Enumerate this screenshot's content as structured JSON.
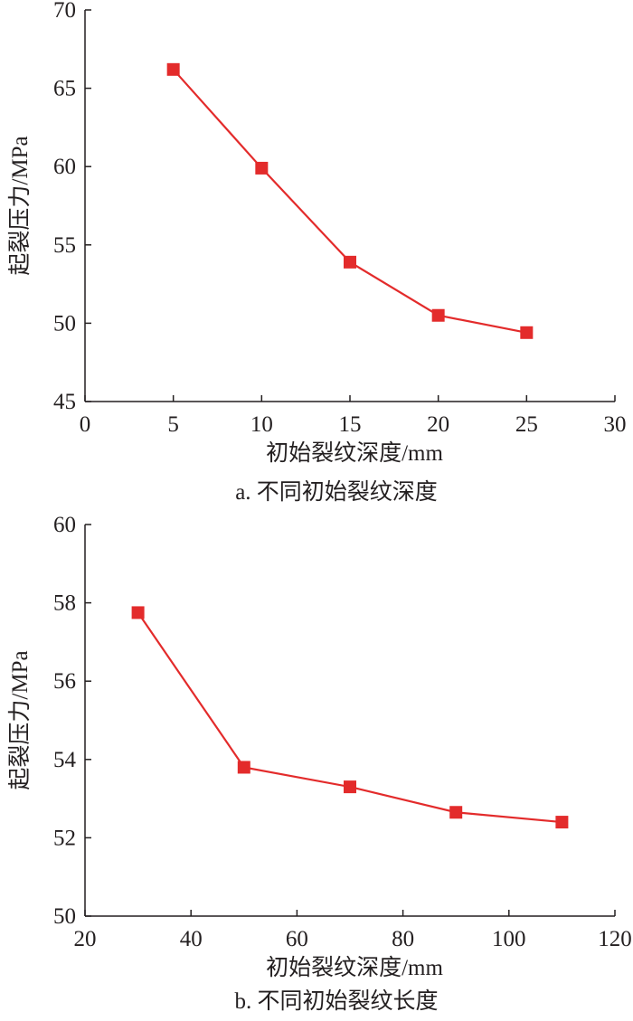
{
  "colors": {
    "series": "#e32b2b",
    "axis": "#231f20"
  },
  "chart_data": [
    {
      "type": "line",
      "caption": "a. 不同初始裂纹深度",
      "xlabel": "初始裂纹深度/mm",
      "ylabel": "起裂压力/MPa",
      "xlim": [
        0,
        30
      ],
      "ylim": [
        45,
        70
      ],
      "xticks": [
        0,
        5,
        10,
        15,
        20,
        25,
        30
      ],
      "yticks": [
        45,
        50,
        55,
        60,
        65,
        70
      ],
      "grid": false,
      "marker": "square",
      "series": [
        {
          "x": [
            5,
            10,
            15,
            20,
            25
          ],
          "y": [
            66.2,
            59.9,
            53.9,
            50.5,
            49.4
          ]
        }
      ]
    },
    {
      "type": "line",
      "caption": "b. 不同初始裂纹长度",
      "xlabel": "初始裂纹深度/mm",
      "ylabel": "起裂压力/MPa",
      "xlim": [
        20,
        120
      ],
      "ylim": [
        50,
        60
      ],
      "xticks": [
        20,
        40,
        60,
        80,
        100,
        120
      ],
      "yticks": [
        50,
        52,
        54,
        56,
        58,
        60
      ],
      "grid": false,
      "marker": "square",
      "series": [
        {
          "x": [
            30,
            50,
            70,
            90,
            110
          ],
          "y": [
            57.75,
            53.8,
            53.3,
            52.65,
            52.4
          ]
        }
      ]
    }
  ]
}
